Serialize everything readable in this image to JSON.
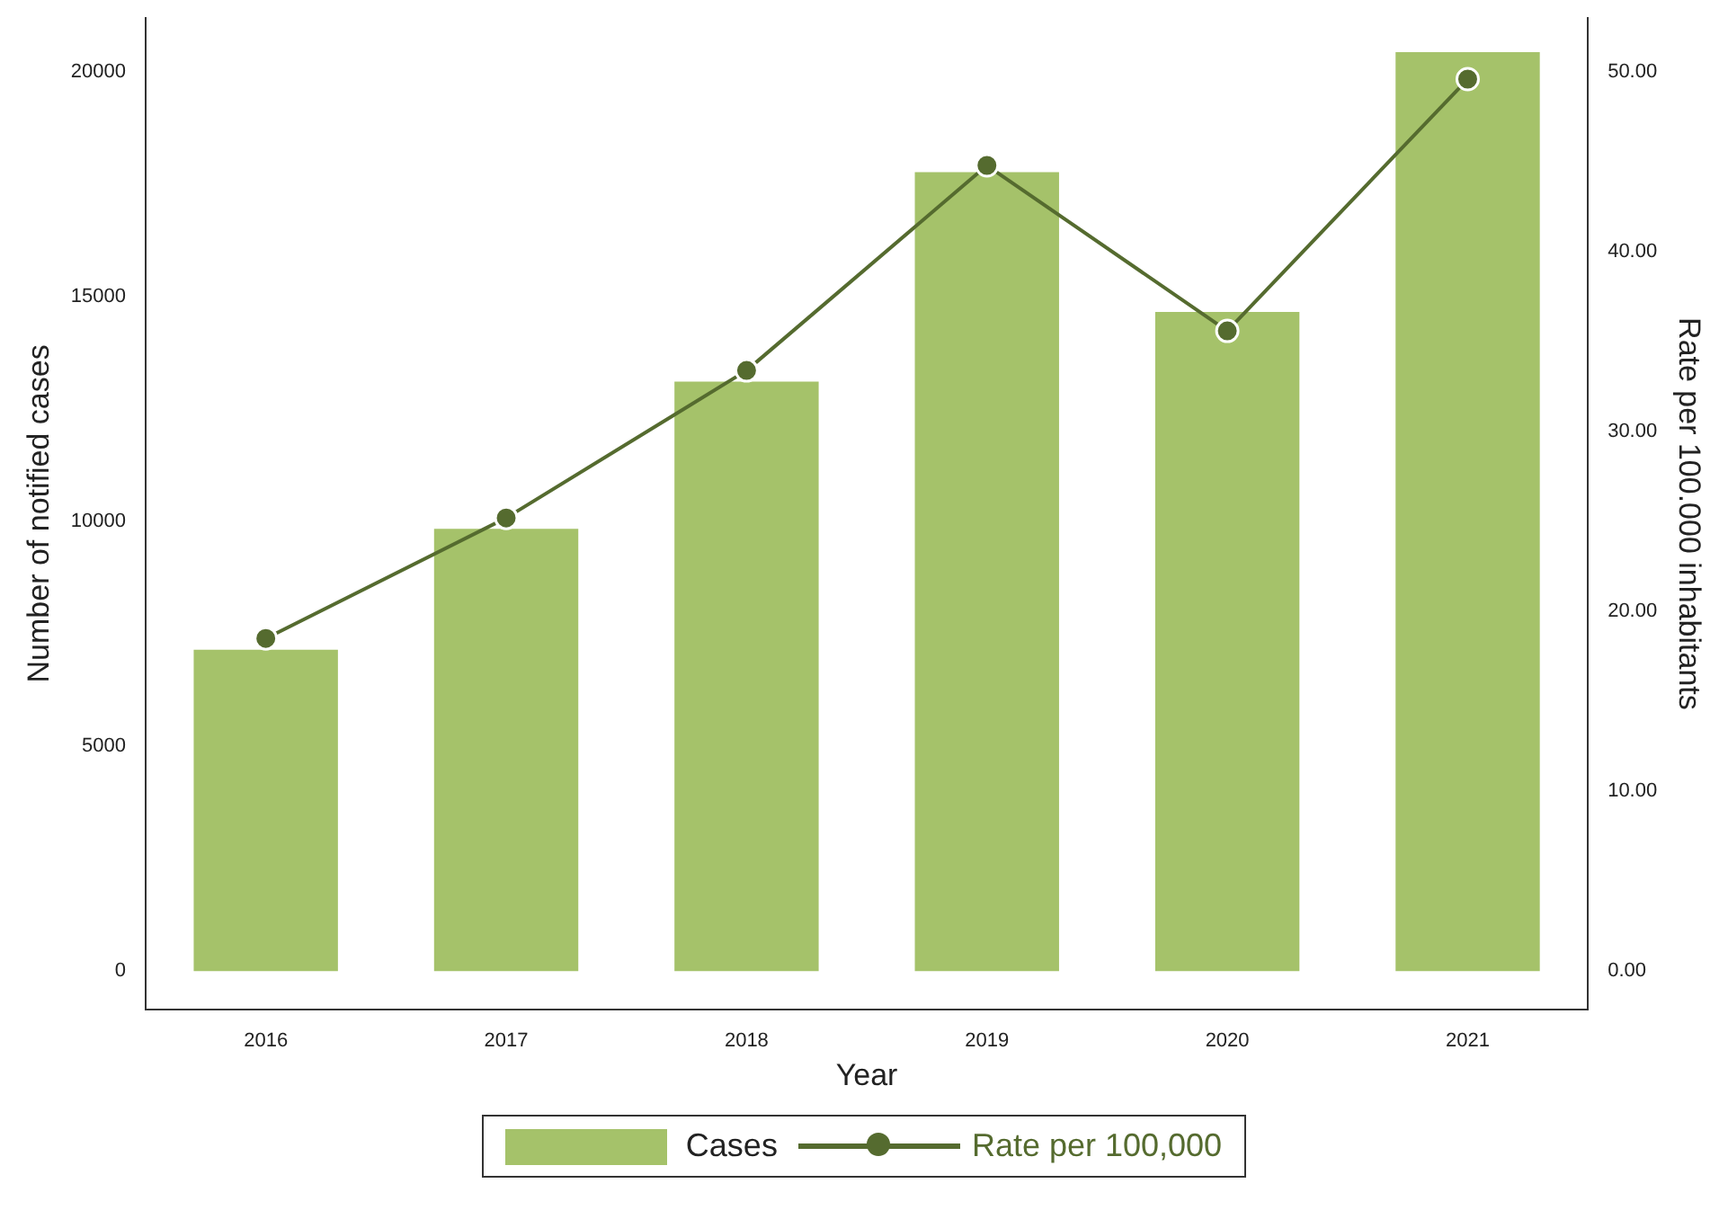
{
  "chart_data": {
    "type": "bar",
    "xlabel": "Year",
    "ylabel": "Number of notified cases",
    "y2label": "Rate per 100.000 inhabitants",
    "categories": [
      "2016",
      "2017",
      "2018",
      "2019",
      "2020",
      "2021"
    ],
    "series": [
      {
        "name": "Cases",
        "color": "#a5c26a",
        "values": [
          7150,
          9840,
          13110,
          17770,
          14660,
          20440
        ]
      },
      {
        "name": "Rate per 100,000",
        "type": "line",
        "axis": "y2",
        "color": "#556b2f",
        "marker": "circle",
        "values": [
          18.5,
          25.2,
          33.4,
          44.8,
          35.6,
          49.6
        ]
      }
    ],
    "ylim": [
      -850,
      21200
    ],
    "yticks": [
      0,
      5000,
      10000,
      15000,
      20000
    ],
    "y2lim": [
      -2.125,
      53
    ],
    "y2ticks": [
      {
        "value": 0,
        "label": "0.00"
      },
      {
        "value": 10,
        "label": "10.00"
      },
      {
        "value": 20,
        "label": "20.00"
      },
      {
        "value": 30,
        "label": "30.00"
      },
      {
        "value": 40,
        "label": "40.00"
      },
      {
        "value": 50,
        "label": "50.00"
      }
    ],
    "grid": false,
    "legend": "bottom"
  }
}
